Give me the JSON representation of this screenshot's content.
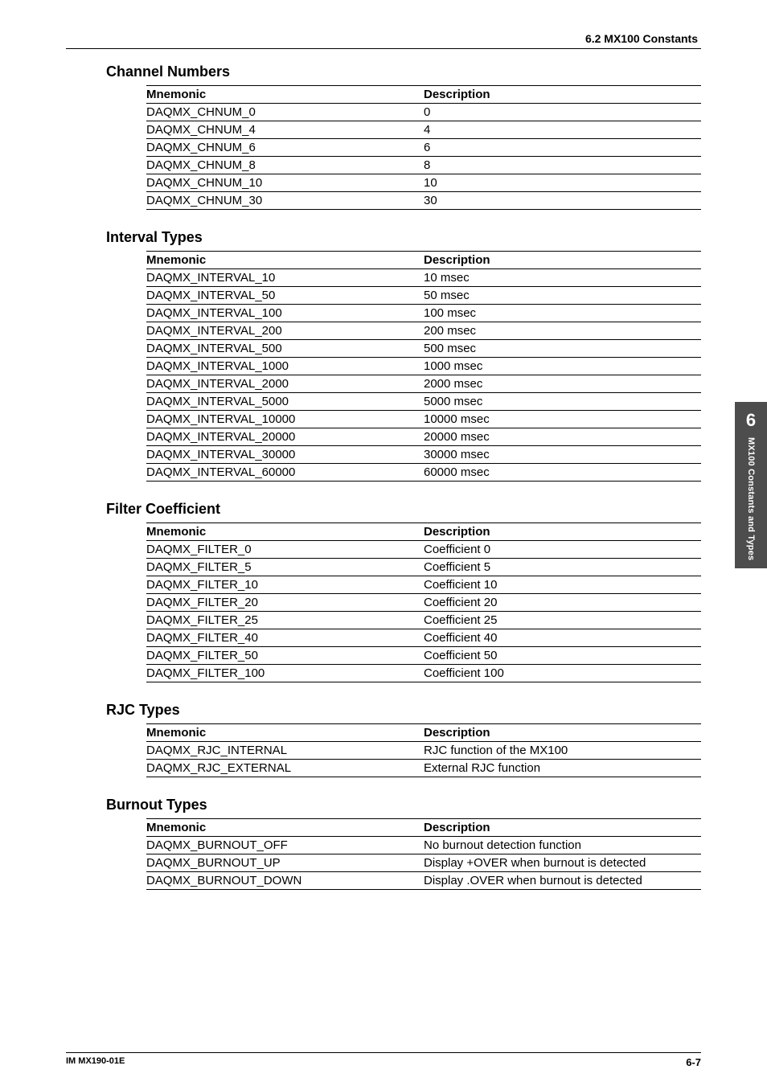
{
  "header": {
    "section_ref": "6.2 MX100 Constants"
  },
  "sidebar": {
    "chapter_num": "6",
    "chapter_title": "MX100 Constants and Types"
  },
  "footer": {
    "doc_id": "IM MX190-01E",
    "page_num": "6-7"
  },
  "column_labels": {
    "mnemonic": "Mnemonic",
    "description": "Description"
  },
  "sections": {
    "channel_numbers": {
      "title": "Channel Numbers",
      "rows": [
        {
          "m": "DAQMX_CHNUM_0",
          "d": "0"
        },
        {
          "m": "DAQMX_CHNUM_4",
          "d": "4"
        },
        {
          "m": "DAQMX_CHNUM_6",
          "d": "6"
        },
        {
          "m": "DAQMX_CHNUM_8",
          "d": "8"
        },
        {
          "m": "DAQMX_CHNUM_10",
          "d": "10"
        },
        {
          "m": "DAQMX_CHNUM_30",
          "d": "30"
        }
      ]
    },
    "interval_types": {
      "title": "Interval Types",
      "rows": [
        {
          "m": "DAQMX_INTERVAL_10",
          "d": "10 msec"
        },
        {
          "m": "DAQMX_INTERVAL_50",
          "d": "50 msec"
        },
        {
          "m": "DAQMX_INTERVAL_100",
          "d": "100 msec"
        },
        {
          "m": "DAQMX_INTERVAL_200",
          "d": "200 msec"
        },
        {
          "m": "DAQMX_INTERVAL_500",
          "d": "500 msec"
        },
        {
          "m": "DAQMX_INTERVAL_1000",
          "d": "1000 msec"
        },
        {
          "m": "DAQMX_INTERVAL_2000",
          "d": "2000 msec"
        },
        {
          "m": "DAQMX_INTERVAL_5000",
          "d": "5000 msec"
        },
        {
          "m": "DAQMX_INTERVAL_10000",
          "d": "10000 msec"
        },
        {
          "m": "DAQMX_INTERVAL_20000",
          "d": "20000 msec"
        },
        {
          "m": "DAQMX_INTERVAL_30000",
          "d": "30000 msec"
        },
        {
          "m": "DAQMX_INTERVAL_60000",
          "d": "60000 msec"
        }
      ]
    },
    "filter_coefficient": {
      "title": "Filter Coefficient",
      "rows": [
        {
          "m": "DAQMX_FILTER_0",
          "d": "Coefficient 0"
        },
        {
          "m": "DAQMX_FILTER_5",
          "d": "Coefficient 5"
        },
        {
          "m": "DAQMX_FILTER_10",
          "d": "Coefficient 10"
        },
        {
          "m": "DAQMX_FILTER_20",
          "d": "Coefficient 20"
        },
        {
          "m": "DAQMX_FILTER_25",
          "d": "Coefficient 25"
        },
        {
          "m": "DAQMX_FILTER_40",
          "d": "Coefficient 40"
        },
        {
          "m": "DAQMX_FILTER_50",
          "d": "Coefficient 50"
        },
        {
          "m": "DAQMX_FILTER_100",
          "d": "Coefficient 100"
        }
      ]
    },
    "rjc_types": {
      "title": "RJC Types",
      "rows": [
        {
          "m": "DAQMX_RJC_INTERNAL",
          "d": "RJC function of the MX100"
        },
        {
          "m": "DAQMX_RJC_EXTERNAL",
          "d": "External RJC function"
        }
      ]
    },
    "burnout_types": {
      "title": "Burnout Types",
      "rows": [
        {
          "m": "DAQMX_BURNOUT_OFF",
          "d": "No burnout detection function"
        },
        {
          "m": "DAQMX_BURNOUT_UP",
          "d": "Display +OVER when burnout is detected"
        },
        {
          "m": "DAQMX_BURNOUT_DOWN",
          "d": "Display .OVER when burnout is detected"
        }
      ]
    }
  }
}
